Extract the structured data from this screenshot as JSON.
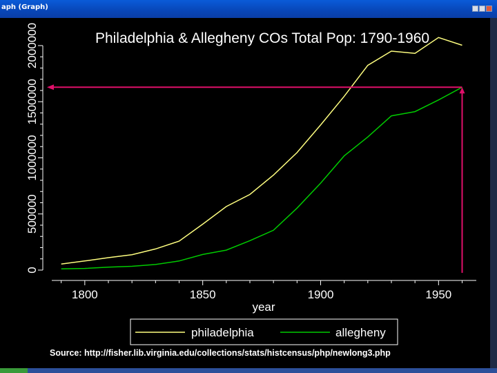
{
  "window": {
    "title": "aph (Graph)"
  },
  "chart_data": {
    "type": "line",
    "title": "Philadelphia & Allegheny COs Total Pop: 1790-1960",
    "xlabel": "year",
    "ylabel": "",
    "x": [
      1790,
      1800,
      1810,
      1820,
      1830,
      1840,
      1850,
      1860,
      1870,
      1880,
      1890,
      1900,
      1910,
      1920,
      1930,
      1940,
      1950,
      1960
    ],
    "xticks": [
      1800,
      1850,
      1900,
      1950
    ],
    "yticks": [
      0,
      500000,
      1000000,
      1500000,
      2000000
    ],
    "xlim": [
      1786,
      1966
    ],
    "ylim": [
      0,
      2000000
    ],
    "series": [
      {
        "name": "philadelphia",
        "color": "#ffff80",
        "values": [
          54000,
          81000,
          111000,
          137000,
          188000,
          258000,
          409000,
          566000,
          674000,
          847000,
          1047000,
          1293000,
          1549000,
          1824000,
          1951000,
          1931000,
          2072000,
          2003000
        ]
      },
      {
        "name": "allegheny",
        "color": "#00cc00",
        "values": [
          11000,
          15000,
          26000,
          34000,
          50000,
          81000,
          139000,
          178000,
          262000,
          355000,
          552000,
          775000,
          1018000,
          1186000,
          1374000,
          1412000,
          1516000,
          1629000
        ]
      }
    ],
    "annotation": {
      "type": "arrow",
      "color": "#e0106a",
      "at_x": 1960,
      "at_y": 1629000
    },
    "legend_position": "bottom"
  },
  "source_text": "Source: http://fisher.lib.virginia.edu/collections/stats/histcensus/php/newlong3.php"
}
